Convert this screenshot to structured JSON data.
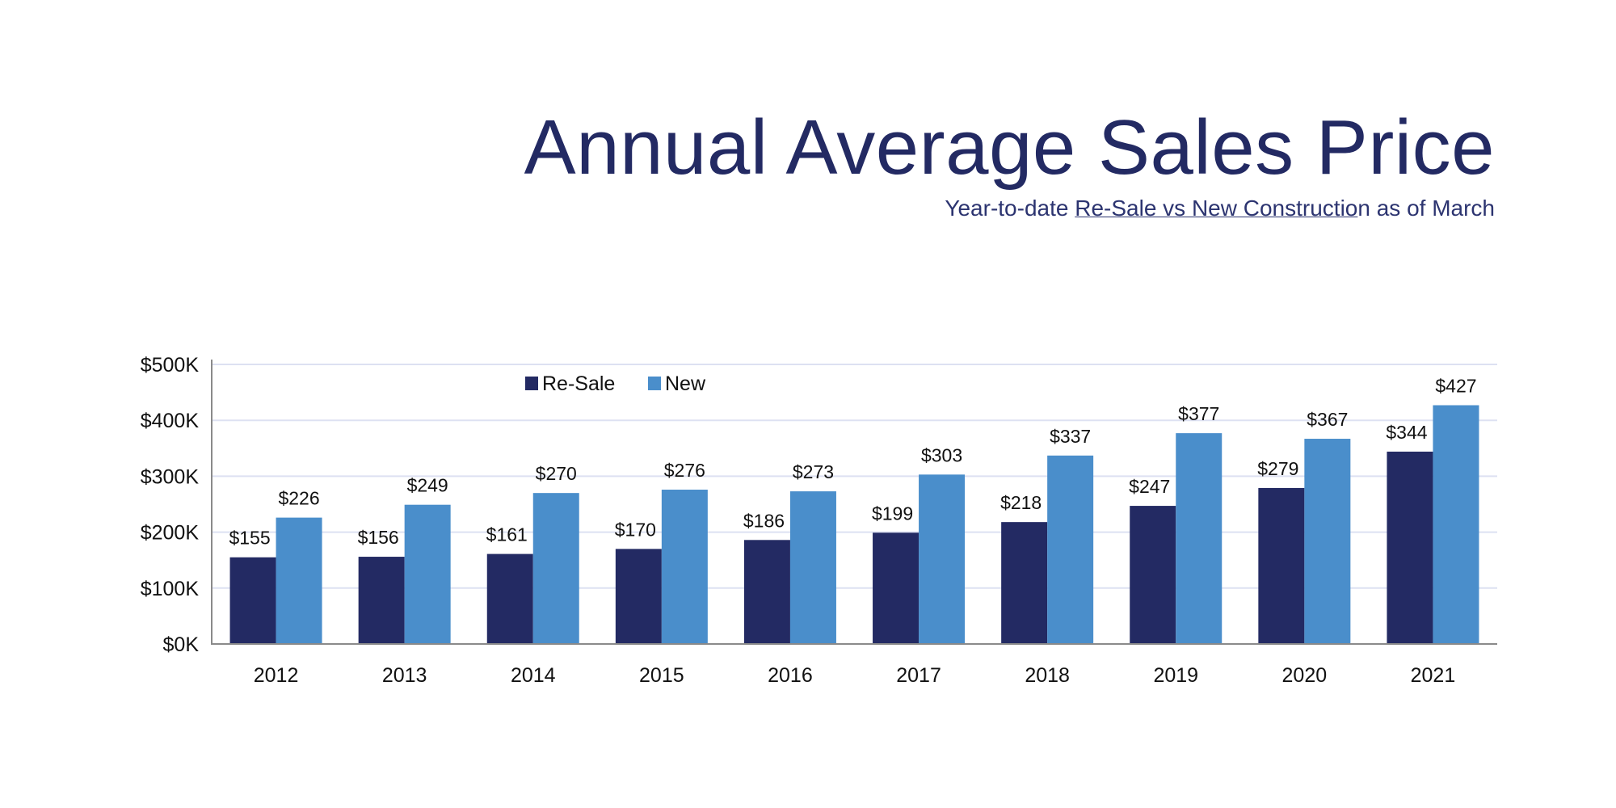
{
  "header": {
    "title": "Annual Average Sales Price",
    "subtitle_prefix": "Year-to-date ",
    "subtitle_underlined": "Re-Sale vs New Constructio",
    "subtitle_suffix": "n as of March"
  },
  "chart_data": {
    "type": "bar",
    "title": "Annual Average Sales Price",
    "subtitle": "Year-to-date Re-Sale vs New Construction as of March",
    "categories": [
      "2012",
      "2013",
      "2014",
      "2015",
      "2016",
      "2017",
      "2018",
      "2019",
      "2020",
      "2021"
    ],
    "series": [
      {
        "name": "Re-Sale",
        "color": "#232a63",
        "values": [
          155,
          156,
          161,
          170,
          186,
          199,
          218,
          247,
          279,
          344
        ],
        "labels": [
          "$155",
          "$156",
          "$161",
          "$170",
          "$186",
          "$199",
          "$218",
          "$247",
          "$279",
          "$344"
        ]
      },
      {
        "name": "New",
        "color": "#4a8ecb",
        "values": [
          226,
          249,
          270,
          276,
          273,
          303,
          337,
          377,
          367,
          427
        ],
        "labels": [
          "$226",
          "$249",
          "$270",
          "$276",
          "$273",
          "$303",
          "$337",
          "$377",
          "$367",
          "$427"
        ]
      }
    ],
    "unit": "thousands USD",
    "ylim": [
      0,
      500
    ],
    "yticks": [
      0,
      100,
      200,
      300,
      400,
      500
    ],
    "ytick_labels": [
      "$0K",
      "$100K",
      "$200K",
      "$300K",
      "$400K",
      "$500K"
    ],
    "grid": true,
    "legend": "top-left"
  }
}
